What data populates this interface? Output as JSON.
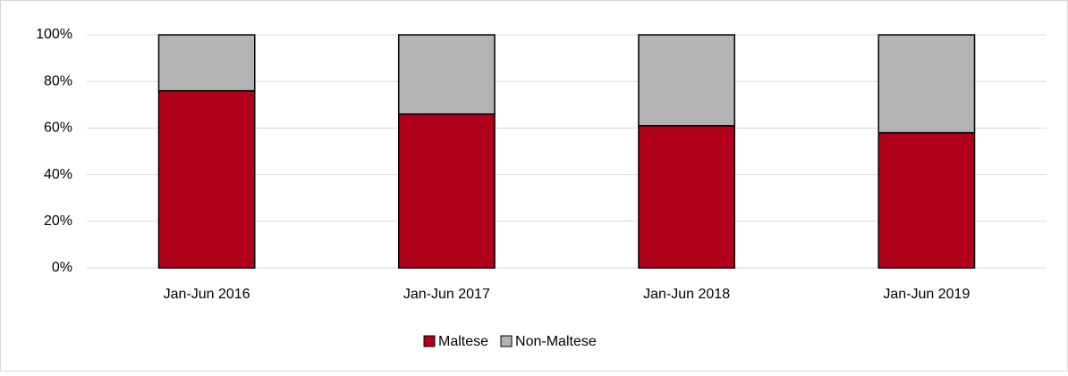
{
  "chart_data": {
    "type": "stacked_bar",
    "categories": [
      "Jan-Jun 2016",
      "Jan-Jun 2017",
      "Jan-Jun 2018",
      "Jan-Jun 2019"
    ],
    "series": [
      {
        "name": "Maltese",
        "color": "#b0001a",
        "values": [
          76,
          66,
          61,
          58
        ]
      },
      {
        "name": "Non-Maltese",
        "color": "#b3b3b3",
        "values": [
          24,
          34,
          39,
          42
        ]
      }
    ],
    "ylim": [
      0,
      100
    ],
    "yticks": [
      {
        "value": 0,
        "label": "0%"
      },
      {
        "value": 20,
        "label": "20%"
      },
      {
        "value": 40,
        "label": "40%"
      },
      {
        "value": 60,
        "label": "60%"
      },
      {
        "value": 80,
        "label": "80%"
      },
      {
        "value": 100,
        "label": "100%"
      }
    ],
    "grid": true,
    "legend": "bottom"
  }
}
